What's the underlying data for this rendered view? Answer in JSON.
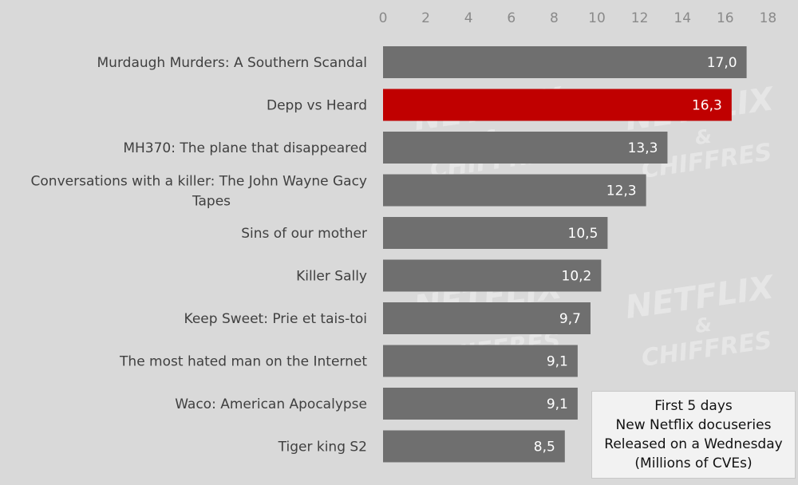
{
  "chart_data": {
    "type": "bar",
    "orientation": "horizontal",
    "categories": [
      "Murdaugh Murders: A Southern Scandal",
      "Depp vs Heard",
      "MH370: The plane that disappeared",
      "Conversations with a killer: The John Wayne Gacy Tapes",
      "Sins of our mother",
      "Killer Sally",
      "Keep Sweet: Prie et tais-toi",
      "The most hated man on the Internet",
      "Waco: American Apocalypse",
      "Tiger king S2"
    ],
    "values": [
      17.0,
      16.3,
      13.3,
      12.3,
      10.5,
      10.2,
      9.7,
      9.1,
      9.1,
      8.5
    ],
    "value_labels": [
      "17,0",
      "16,3",
      "13,3",
      "12,3",
      "10,5",
      "10,2",
      "9,7",
      "9,1",
      "9,1",
      "8,5"
    ],
    "highlight_index": 1,
    "xlim": [
      0,
      18
    ],
    "x_ticks": [
      0,
      2,
      4,
      6,
      8,
      10,
      12,
      14,
      16,
      18
    ],
    "x_axis_position": "top",
    "grid": false,
    "colors": {
      "bar": "#6f6f6f",
      "highlight": "#c00000",
      "background": "#d9d9d9"
    },
    "legend": {
      "placement": "bottom-right",
      "lines": [
        "First 5 days",
        "New Netflix docuseries",
        "Released on a Wednesday",
        "(Millions of CVEs)"
      ]
    },
    "watermark": [
      "NETFLIX",
      "&",
      "CHIFFRES"
    ]
  }
}
